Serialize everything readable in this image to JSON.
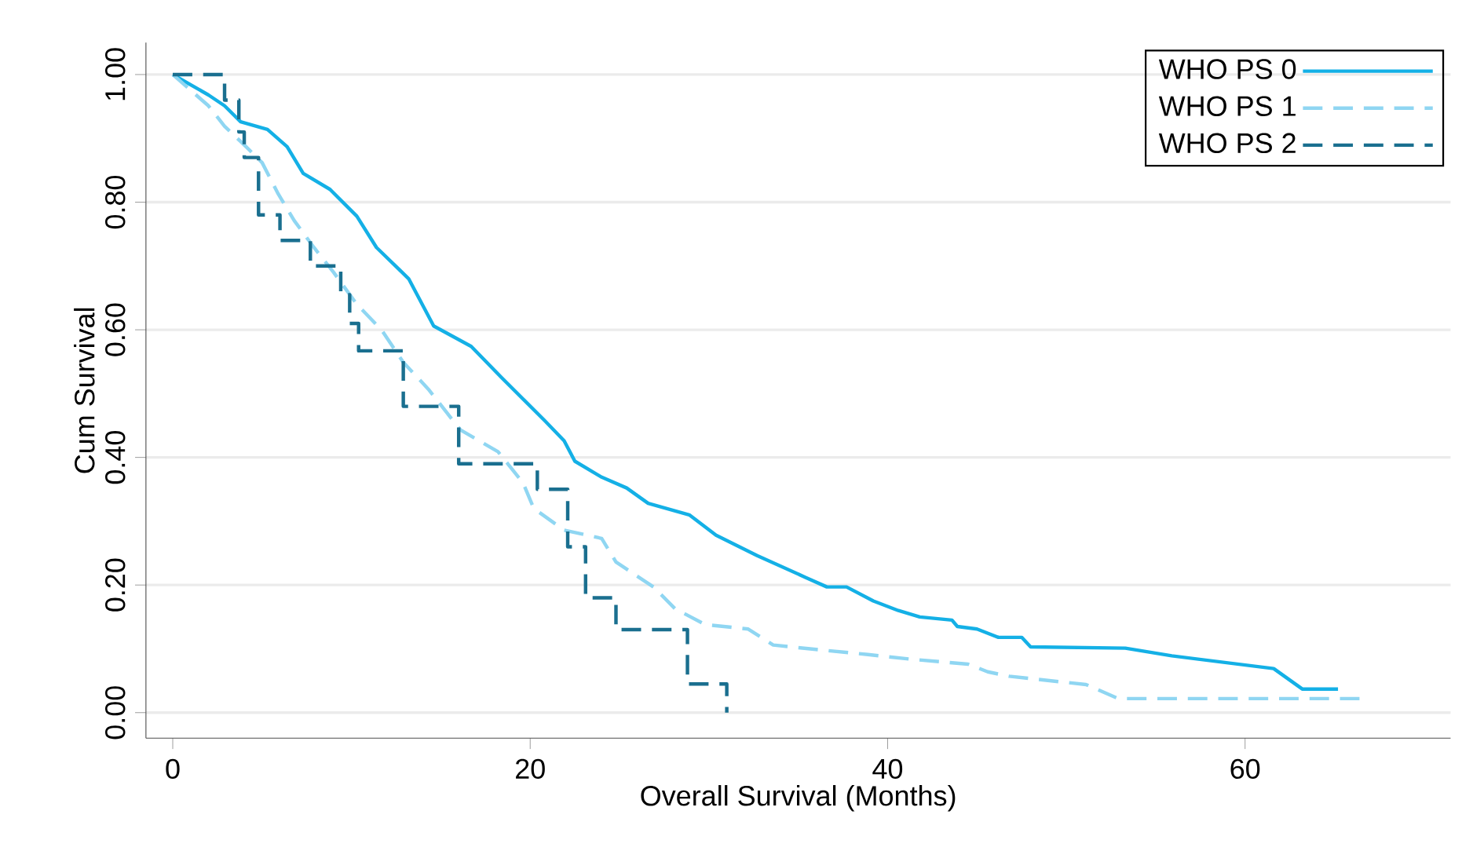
{
  "chart_data": {
    "type": "step",
    "xlabel": "Overall Survival (Months)",
    "ylabel": "Cum Survival",
    "xlim": [
      -1.5,
      71.5
    ],
    "ylim": [
      -0.04,
      1.05
    ],
    "xticks": [
      0,
      20,
      40,
      60
    ],
    "yticks": [
      {
        "value": 0,
        "label": "0.00"
      },
      {
        "value": 0.2,
        "label": "0.20"
      },
      {
        "value": 0.4,
        "label": "0.40"
      },
      {
        "value": 0.6,
        "label": "0.60"
      },
      {
        "value": 0.8,
        "label": "0.80"
      },
      {
        "value": 1,
        "label": "1.00"
      }
    ],
    "grid": "y",
    "legend": "top right",
    "series": [
      {
        "name": "WHO PS 0",
        "type": "line",
        "color": "#14b0e6",
        "line_style": "solid",
        "x": [
          0,
          2.0,
          2.9,
          3.8,
          5.3,
          6.4,
          7.3,
          8.8,
          10.3,
          11.4,
          13.2,
          14.6,
          16.7,
          18.4,
          20.8,
          21.9,
          22.5,
          24.0,
          25.4,
          26.6,
          28.9,
          30.4,
          32.7,
          35.4,
          36.6,
          37.7,
          39.2,
          40.6,
          41.8,
          43.6,
          43.9,
          45.0,
          46.2,
          47.5,
          48.0,
          53.3,
          55.9,
          61.6,
          63.2,
          65.2
        ],
        "values": [
          1.0,
          0.968,
          0.951,
          0.926,
          0.914,
          0.887,
          0.845,
          0.82,
          0.778,
          0.729,
          0.68,
          0.606,
          0.574,
          0.525,
          0.458,
          0.426,
          0.394,
          0.369,
          0.352,
          0.328,
          0.31,
          0.278,
          0.246,
          0.212,
          0.197,
          0.197,
          0.175,
          0.16,
          0.15,
          0.145,
          0.135,
          0.131,
          0.118,
          0.118,
          0.103,
          0.101,
          0.089,
          0.069,
          0.037,
          0.037
        ]
      },
      {
        "name": "WHO PS 1",
        "type": "line",
        "color": "#8fd6f2",
        "line_style": "dashed",
        "x": [
          0,
          2.0,
          2.9,
          4.1,
          5.0,
          5.9,
          6.8,
          7.9,
          9.0,
          10.3,
          11.7,
          12.9,
          14.3,
          16.1,
          18.2,
          19.6,
          20.2,
          21.9,
          24.0,
          24.8,
          26.9,
          28.1,
          29.8,
          32.2,
          33.6,
          36.0,
          38.9,
          41.2,
          44.5,
          45.6,
          46.8,
          51.1,
          52.9,
          66.5
        ],
        "values": [
          1.0,
          0.951,
          0.919,
          0.887,
          0.862,
          0.813,
          0.771,
          0.729,
          0.69,
          0.64,
          0.599,
          0.549,
          0.507,
          0.443,
          0.409,
          0.36,
          0.32,
          0.286,
          0.273,
          0.236,
          0.197,
          0.163,
          0.138,
          0.131,
          0.106,
          0.099,
          0.091,
          0.084,
          0.076,
          0.064,
          0.057,
          0.044,
          0.022,
          0.022
        ]
      },
      {
        "name": "WHO PS 2",
        "color": "#1a6f8f",
        "line_style": "dashed",
        "x": [
          0,
          2.9,
          3.7,
          4.0,
          4.8,
          6.0,
          7.7,
          9.4,
          9.9,
          10.4,
          12.9,
          16.0,
          20.4,
          22.1,
          23.1,
          24.8,
          28.8,
          31.0
        ],
        "values": [
          1.0,
          0.96,
          0.91,
          0.87,
          0.78,
          0.74,
          0.7,
          0.655,
          0.61,
          0.567,
          0.48,
          0.39,
          0.35,
          0.26,
          0.18,
          0.13,
          0.045,
          0.0
        ]
      }
    ]
  }
}
